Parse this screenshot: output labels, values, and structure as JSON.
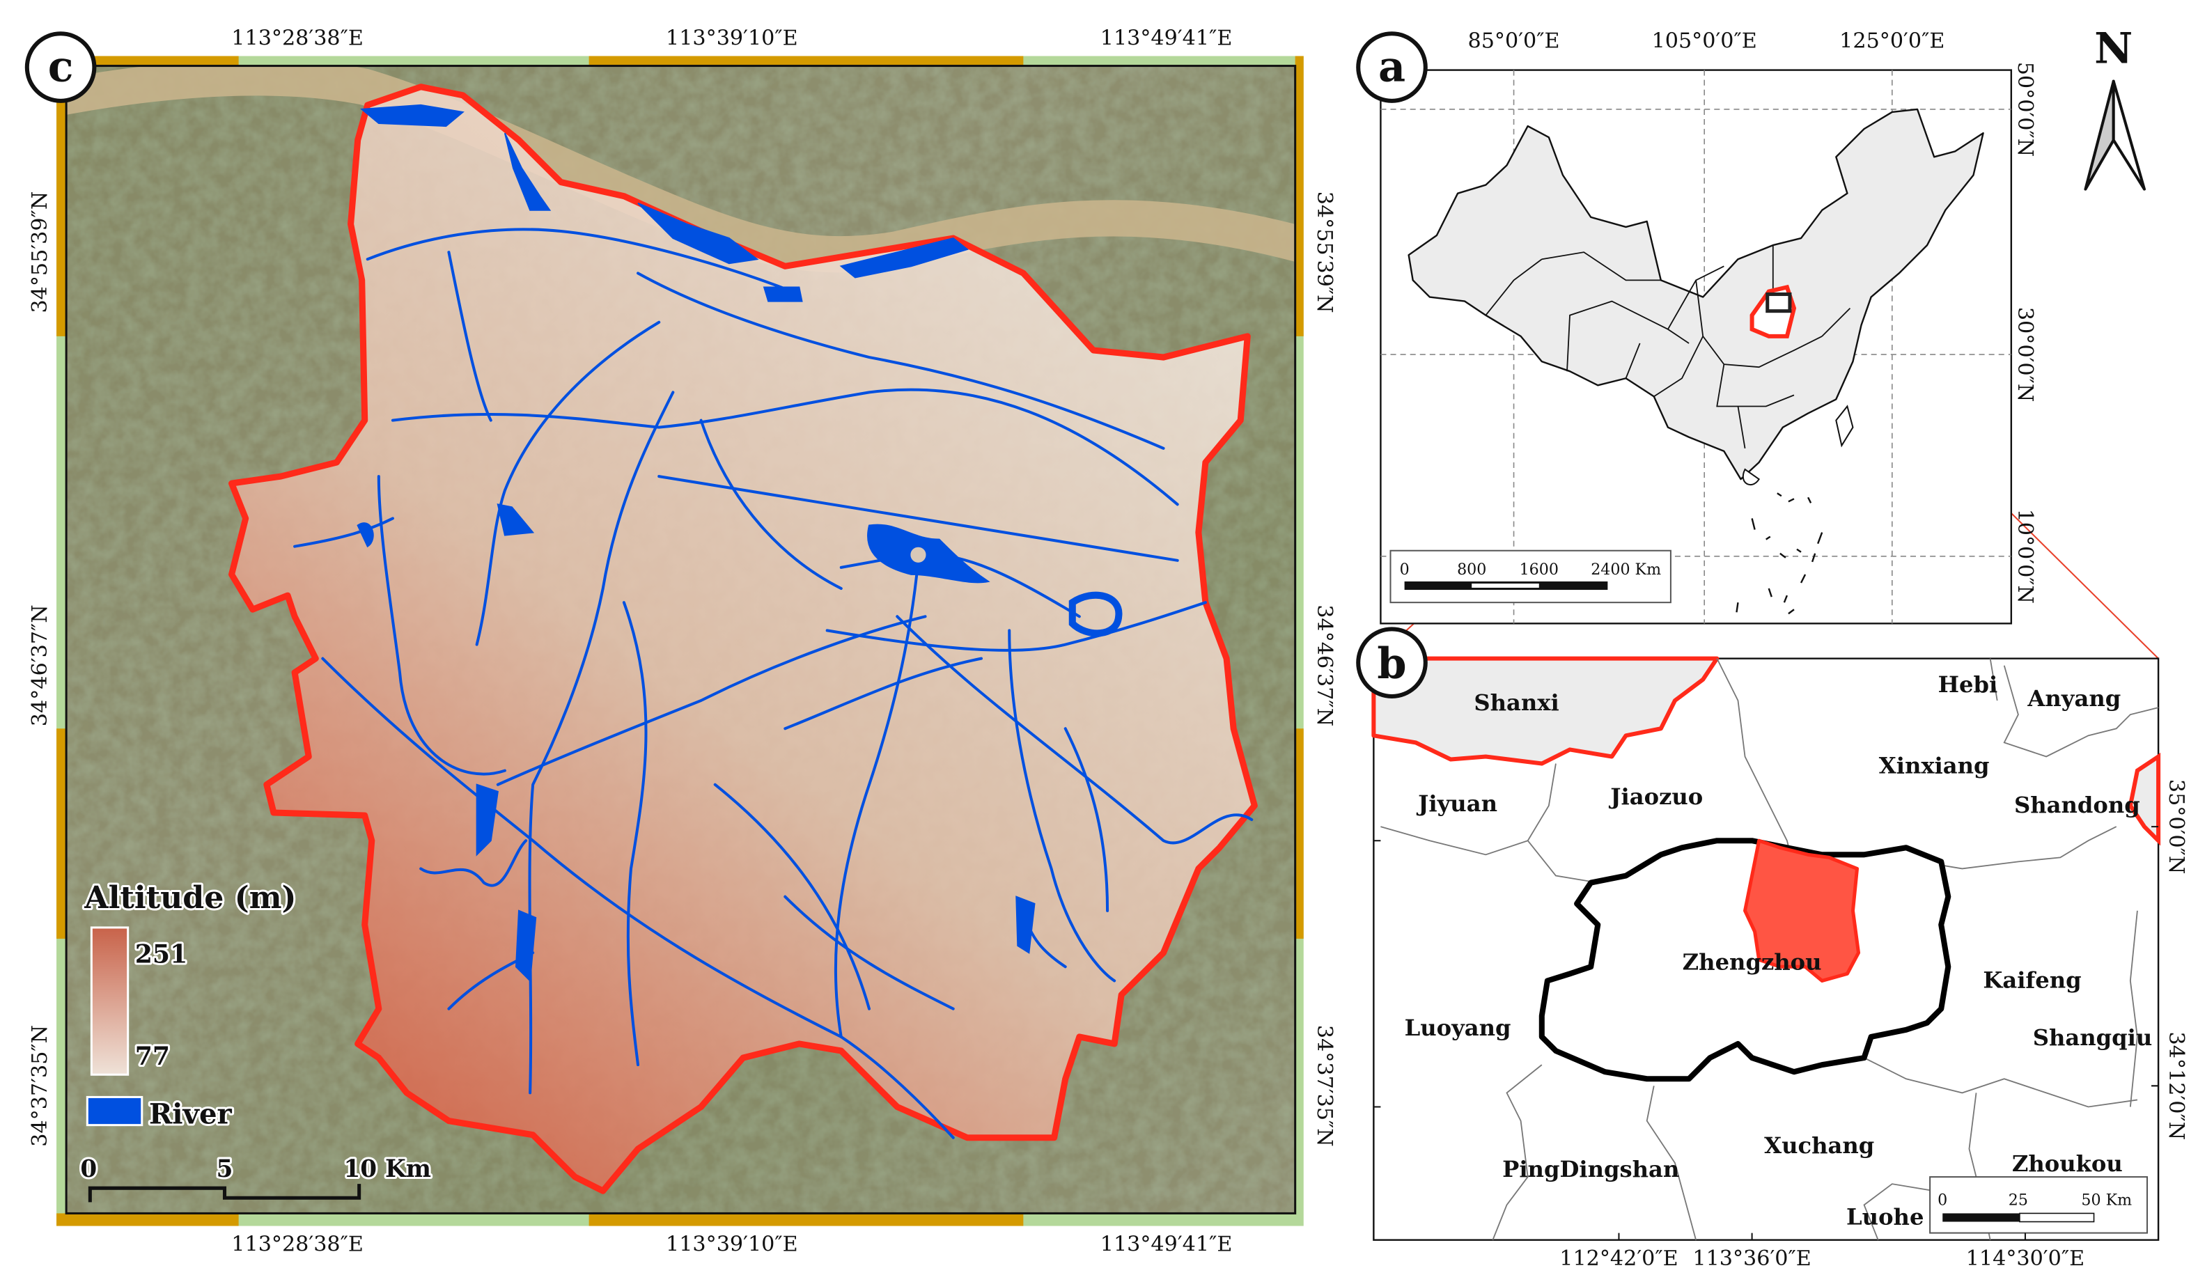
{
  "colors": {
    "study_area_outline": "#ff2a1a",
    "river": "#0050e0",
    "zoom_lines": "#e8402a",
    "frame_gold": "#d49a00",
    "frame_green": "#b4d89a",
    "province_fill": "#ececec",
    "study_area_fill": "#ff5544"
  },
  "panel_c": {
    "letter": "c",
    "top_ticks": [
      "113°28′38″E",
      "113°39′10″E",
      "113°49′41″E"
    ],
    "bottom_ticks": [
      "113°28′38″E",
      "113°39′10″E",
      "113°49′41″E"
    ],
    "left_ticks": [
      "34°55′39″N",
      "34°46′37″N",
      "34°37′35″N"
    ],
    "right_ticks": [
      "34°55′39″N",
      "34°46′37″N",
      "34°37′35″N"
    ],
    "legend": {
      "altitude_title": "Altitude (m)",
      "altitude_max": "251",
      "altitude_min": "77",
      "river_label": "River"
    },
    "scale_bar": {
      "labels": [
        "0",
        "5",
        "10 Km"
      ]
    }
  },
  "panel_a": {
    "letter": "a",
    "top_ticks": [
      "85°0′0″E",
      "105°0′0″E",
      "125°0′0″E"
    ],
    "right_ticks": [
      "50°0′0″N",
      "30°0′0″N",
      "10°0′0″N"
    ],
    "scale_bar": {
      "labels": [
        "0",
        "800",
        "1600",
        "2400 Km"
      ]
    }
  },
  "north_arrow": {
    "label": "N",
    "icon": "north-arrow-icon"
  },
  "panel_b": {
    "letter": "b",
    "bottom_ticks": [
      "112°42′0″E",
      "113°36′0″E",
      "114°30′0″E"
    ],
    "right_ticks": [
      "35°0′0″N",
      "34°12′0″N"
    ],
    "places": [
      "Shanxi",
      "Hebi",
      "Anyang",
      "Xinxiang",
      "Jiyuan",
      "Jiaozuo",
      "Shandong",
      "Zhengzhou",
      "Kaifeng",
      "Luoyang",
      "Shangqiu",
      "Xuchang",
      "PingDingshan",
      "Zhoukou",
      "Luohe"
    ],
    "scale_bar": {
      "labels": [
        "0",
        "25",
        "50 Km"
      ]
    }
  }
}
